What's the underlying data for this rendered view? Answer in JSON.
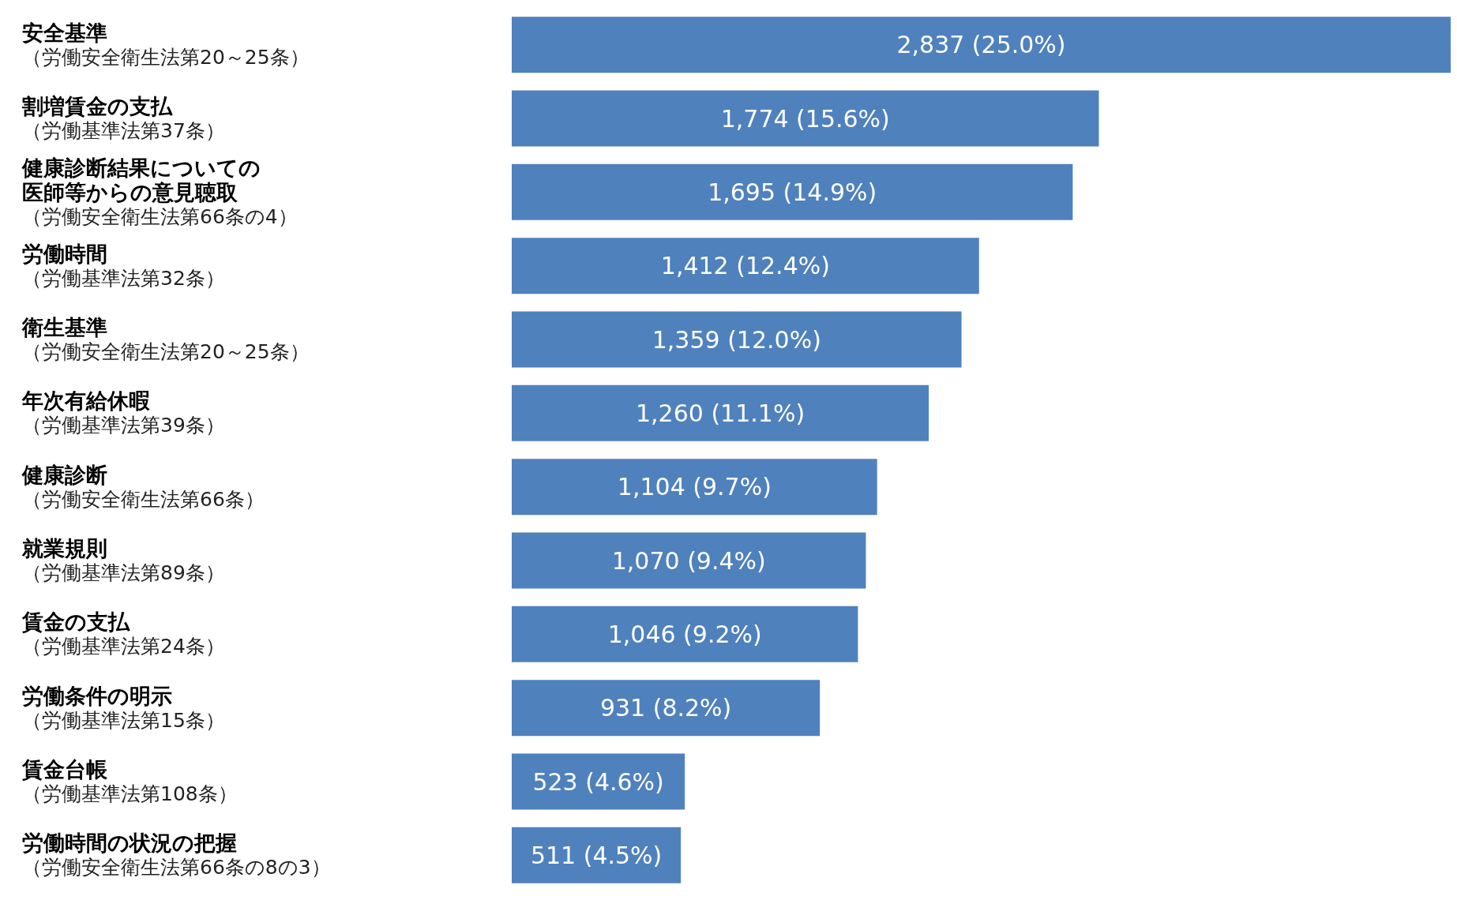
{
  "chart_data": {
    "type": "bar",
    "orientation": "horizontal",
    "color": "#4f81bd",
    "categories": [
      "安全基準（労働安全衛生法第20～25条）",
      "割増賃金の支払（労働基準法第37条）",
      "健康診断結果についての医師等からの意見聴取（労働安全衛生法第66条の4）",
      "労働時間（労働基準法第32条）",
      "衛生基準（労働安全衛生法第20～25条）",
      "年次有給休暇（労働基準法第39条）",
      "健康診断（労働安全衛生法第66条）",
      "就業規則（労働基準法第89条）",
      "賃金の支払（労働基準法第24条）",
      "労働条件の明示（労働基準法第15条）",
      "賃金台帳（労働基準法第108条）",
      "労働時間の状況の把握（労働安全衛生法第66条の8の3）"
    ],
    "values": [
      2837,
      1774,
      1695,
      1412,
      1359,
      1260,
      1104,
      1070,
      1046,
      931,
      523,
      511
    ],
    "value_labels": [
      "2,837 (25.0%)",
      "1,774 (15.6%)",
      "1,695 (14.9%)",
      "1,412 (12.4%)",
      "1,359 (12.0%)",
      "1,260 (11.1%)",
      "1,104 (9.7%)",
      "1,070 (9.4%)",
      "1,046 (9.2%)",
      "931 (8.2%)",
      "523 (4.6%)",
      "511 (4.5%)"
    ]
  }
}
